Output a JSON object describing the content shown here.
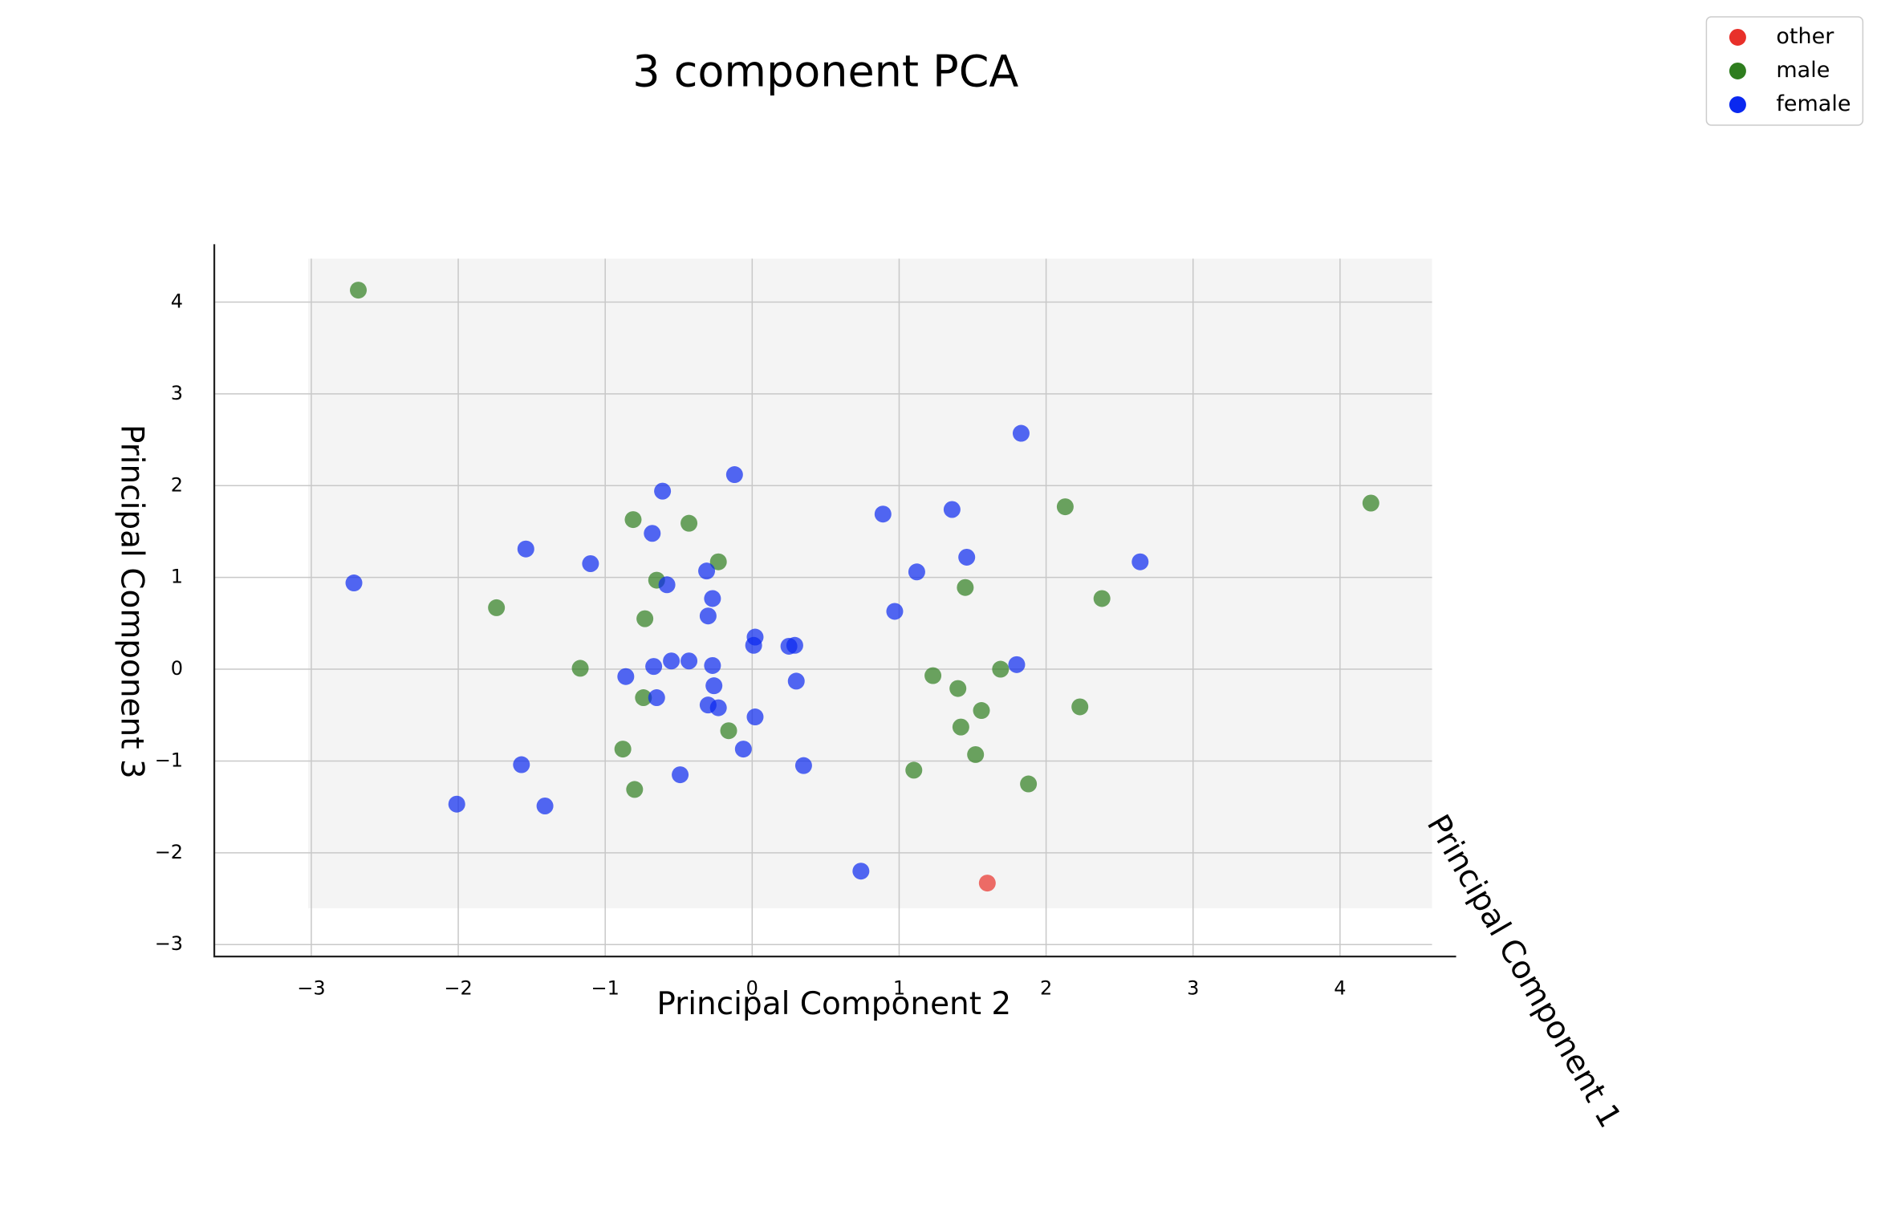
{
  "chart_data": {
    "type": "scatter",
    "title": "3 component PCA",
    "xlabel": "Principal Component 2",
    "ylabel": "Principal Component 3",
    "zlabel": "Principal Component 1",
    "xlim": [
      -3.66,
      4.79
    ],
    "ylim": [
      -3.13,
      4.63
    ],
    "xticks": [
      {
        "value": -3,
        "label": "−3"
      },
      {
        "value": -2,
        "label": "−2"
      },
      {
        "value": -1,
        "label": "−1"
      },
      0,
      1,
      2,
      3,
      4
    ],
    "yticks": [
      {
        "value": -3,
        "label": "−3"
      },
      {
        "value": -2,
        "label": "−2"
      },
      {
        "value": -1,
        "label": "−1"
      },
      0,
      1,
      2,
      3,
      4
    ],
    "grid": true,
    "legend": "upper right",
    "series": [
      {
        "name": "other",
        "color": "#e8302a",
        "x": [
          1.6
        ],
        "y": [
          -2.33
        ]
      },
      {
        "name": "male",
        "color": "#2e7d1e",
        "x": [
          -2.68,
          -1.74,
          -0.81,
          -0.43,
          -0.23,
          -0.65,
          -0.73,
          -1.17,
          -0.74,
          -0.16,
          -0.88,
          -0.8,
          1.1,
          2.13,
          4.21,
          1.45,
          2.38,
          1.23,
          1.4,
          1.69,
          1.56,
          1.42,
          2.23,
          1.52,
          1.88
        ],
        "y": [
          4.13,
          0.67,
          1.63,
          1.59,
          1.17,
          0.97,
          0.55,
          0.01,
          -0.31,
          -0.67,
          -0.87,
          -1.31,
          -1.1,
          1.77,
          1.81,
          0.89,
          0.77,
          -0.07,
          -0.21,
          0.0,
          -0.45,
          -0.63,
          -0.41,
          -0.93,
          -1.25
        ]
      },
      {
        "name": "female",
        "color": "#0a28f0",
        "x": [
          -2.71,
          -1.54,
          -1.1,
          -0.61,
          -0.68,
          -0.12,
          -0.31,
          -0.58,
          -0.27,
          -0.3,
          0.02,
          0.01,
          0.25,
          0.29,
          -0.86,
          -0.67,
          -0.55,
          -0.43,
          -0.27,
          -0.26,
          -0.65,
          -0.3,
          -0.23,
          0.02,
          0.3,
          -0.06,
          0.35,
          -0.49,
          -1.57,
          -2.01,
          -1.41,
          0.74,
          0.89,
          1.36,
          1.83,
          1.12,
          1.46,
          0.97,
          2.64,
          1.8
        ],
        "y": [
          0.94,
          1.31,
          1.15,
          1.94,
          1.48,
          2.12,
          1.07,
          0.92,
          0.77,
          0.58,
          0.35,
          0.26,
          0.25,
          0.26,
          -0.08,
          0.03,
          0.09,
          0.09,
          0.04,
          -0.18,
          -0.31,
          -0.39,
          -0.42,
          -0.52,
          -0.13,
          -0.87,
          -1.05,
          -1.15,
          -1.04,
          -1.47,
          -1.49,
          -2.2,
          1.69,
          1.74,
          2.57,
          1.06,
          1.22,
          0.63,
          1.17,
          0.05
        ]
      }
    ]
  }
}
